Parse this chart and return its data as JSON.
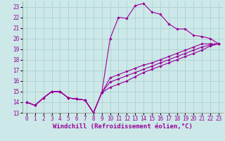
{
  "xlabel": "Windchill (Refroidissement éolien,°C)",
  "background_color": "#cce8e8",
  "line_color": "#990099",
  "grid_color": "#aacccc",
  "xlim": [
    -0.5,
    23.5
  ],
  "ylim": [
    13,
    23.5
  ],
  "xticks": [
    0,
    1,
    2,
    3,
    4,
    5,
    6,
    7,
    8,
    9,
    10,
    11,
    12,
    13,
    14,
    15,
    16,
    17,
    18,
    19,
    20,
    21,
    22,
    23
  ],
  "yticks": [
    13,
    14,
    15,
    16,
    17,
    18,
    19,
    20,
    21,
    22,
    23
  ],
  "lines": [
    {
      "x": [
        0,
        1,
        2,
        3,
        4,
        5,
        6,
        7,
        8,
        9,
        10,
        11,
        12,
        13,
        14,
        15,
        16,
        17,
        18,
        19,
        20,
        21,
        22,
        23
      ],
      "y": [
        14.0,
        13.7,
        14.4,
        15.0,
        15.0,
        14.4,
        14.3,
        14.2,
        13.0,
        14.9,
        20.0,
        22.0,
        21.9,
        23.1,
        23.3,
        22.5,
        22.3,
        21.4,
        20.9,
        20.9,
        20.3,
        20.2,
        20.0,
        19.5
      ]
    },
    {
      "x": [
        0,
        1,
        2,
        3,
        4,
        5,
        6,
        7,
        8,
        9,
        10,
        11,
        12,
        13,
        14,
        15,
        16,
        17,
        18,
        19,
        20,
        21,
        22,
        23
      ],
      "y": [
        14.0,
        13.7,
        14.4,
        15.0,
        15.0,
        14.4,
        14.3,
        14.2,
        13.0,
        14.9,
        16.3,
        16.6,
        16.9,
        17.2,
        17.5,
        17.7,
        18.0,
        18.3,
        18.6,
        18.9,
        19.2,
        19.5,
        19.5,
        19.5
      ]
    },
    {
      "x": [
        0,
        1,
        2,
        3,
        4,
        5,
        6,
        7,
        8,
        9,
        10,
        11,
        12,
        13,
        14,
        15,
        16,
        17,
        18,
        19,
        20,
        21,
        22,
        23
      ],
      "y": [
        14.0,
        13.7,
        14.4,
        15.0,
        15.0,
        14.4,
        14.3,
        14.2,
        13.0,
        14.9,
        15.9,
        16.2,
        16.5,
        16.8,
        17.1,
        17.4,
        17.7,
        18.0,
        18.3,
        18.6,
        18.9,
        19.2,
        19.4,
        19.5
      ]
    },
    {
      "x": [
        0,
        1,
        2,
        3,
        4,
        5,
        6,
        7,
        8,
        9,
        10,
        11,
        12,
        13,
        14,
        15,
        16,
        17,
        18,
        19,
        20,
        21,
        22,
        23
      ],
      "y": [
        14.0,
        13.7,
        14.4,
        15.0,
        15.0,
        14.4,
        14.3,
        14.2,
        13.0,
        14.9,
        15.4,
        15.7,
        16.0,
        16.4,
        16.8,
        17.1,
        17.4,
        17.7,
        18.0,
        18.3,
        18.6,
        18.9,
        19.3,
        19.5
      ]
    }
  ],
  "tick_fontsize": 5.5,
  "label_fontsize": 6.5,
  "marker": "D",
  "marker_size": 1.8,
  "linewidth": 0.8
}
